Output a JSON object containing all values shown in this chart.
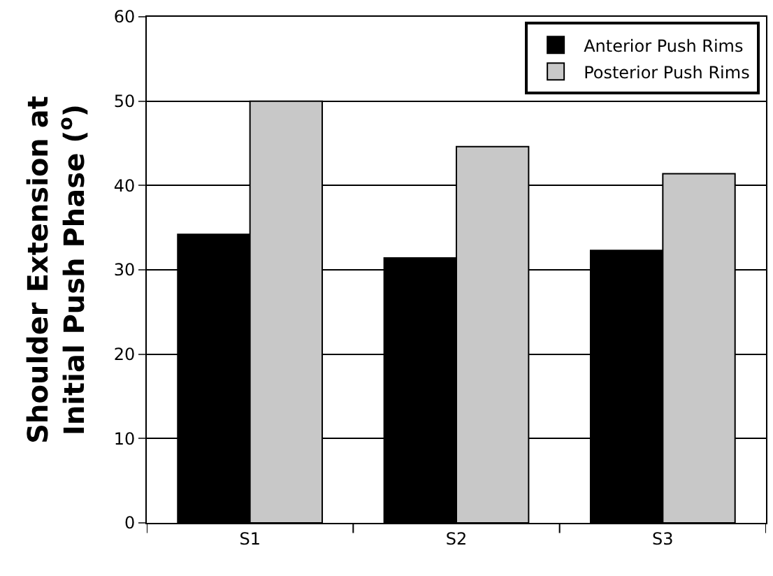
{
  "chart_data": {
    "type": "bar",
    "ylabel": "Shoulder Extension at\nInitial Push Phase ($^{o}$)",
    "categories": [
      "S1",
      "S2",
      "S3"
    ],
    "series": [
      {
        "name": "Anterior Push Rims",
        "color": "#000000",
        "values": [
          34.2,
          31.4,
          32.3
        ]
      },
      {
        "name": "Posterior Push Rims",
        "color": "#c8c8c8",
        "values": [
          50.0,
          44.6,
          41.4
        ]
      }
    ],
    "ylim": [
      0,
      60
    ],
    "yticks": [
      0,
      10,
      20,
      30,
      40,
      50,
      60
    ],
    "grid": "y",
    "legend": "top right"
  }
}
